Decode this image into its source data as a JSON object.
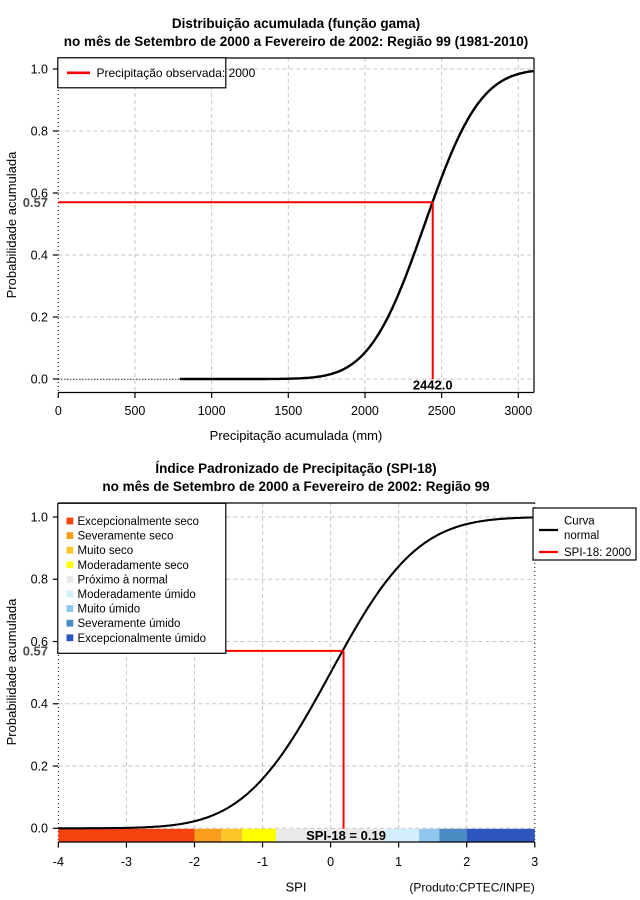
{
  "page": {
    "background": "#ffffff"
  },
  "colors": {
    "curve": "#000000",
    "marker_red": "#ff0000",
    "grid_gray": "#c6c6c6",
    "grid_black_dotted": "#000000",
    "marker_y_label_gray": "#4d4d4d"
  },
  "chart_data": [
    {
      "type": "line",
      "title_line1": "Distribuição acumulada (função gama)",
      "title_line2": "no mês de Setembro de 2000 a Fevereiro de 2002: Região 99 (1981-2010)",
      "xlabel": "Precipitação acumulada (mm)",
      "ylabel": "Probabilidade acumulada",
      "xlim": [
        0,
        3100
      ],
      "ylim": [
        0,
        1
      ],
      "xtick_values": [
        0,
        500,
        1000,
        1500,
        2000,
        2500,
        3000
      ],
      "xtick_labels": [
        "0",
        "500",
        "1000",
        "1500",
        "2000",
        "2500",
        "3000"
      ],
      "ytick_values": [
        0,
        0.2,
        0.4,
        0.6,
        0.8,
        1.0
      ],
      "ytick_labels": [
        "0.0",
        "0.2",
        "0.4",
        "0.6",
        "0.8",
        "1.0"
      ],
      "grid": "dashed gray at ticks, dotted black at x=0",
      "legend": [
        {
          "label": "Precipitação observada: 2000",
          "color": "#ff0000"
        }
      ],
      "curve_model": {
        "kind": "normal_cdf_approx_of_gamma",
        "mean": 2390,
        "sd": 285,
        "draw_from": 794,
        "draw_to": 3100
      },
      "sample_points": [
        [
          800,
          0
        ],
        [
          1000,
          0
        ],
        [
          1200,
          0
        ],
        [
          1400,
          0.001
        ],
        [
          1600,
          0.003
        ],
        [
          1700,
          0.008
        ],
        [
          1800,
          0.02
        ],
        [
          1900,
          0.04
        ],
        [
          2000,
          0.09
        ],
        [
          2100,
          0.15
        ],
        [
          2200,
          0.25
        ],
        [
          2300,
          0.38
        ],
        [
          2400,
          0.51
        ],
        [
          2442,
          0.57
        ],
        [
          2500,
          0.65
        ],
        [
          2600,
          0.77
        ],
        [
          2700,
          0.86
        ],
        [
          2800,
          0.92
        ],
        [
          2900,
          0.96
        ],
        [
          3000,
          0.98
        ],
        [
          3100,
          0.99
        ]
      ],
      "marker": {
        "x": 2442.0,
        "y": 0.57,
        "x_label": "2442.0",
        "y_label": "0.57"
      }
    },
    {
      "type": "line",
      "title_line1": "Índice Padronizado de Precipitação (SPI-18)",
      "title_line2": "no mês de Setembro de 2000 a Fevereiro de 2002: Região 99",
      "xlabel": "SPI",
      "ylabel": "Probabilidade acumulada",
      "xlim": [
        -4,
        3
      ],
      "ylim": [
        0,
        1
      ],
      "xtick_values": [
        -4,
        -3,
        -2,
        -1,
        0,
        1,
        2,
        3
      ],
      "xtick_labels": [
        "-4",
        "-3",
        "-2",
        "-1",
        "0",
        "1",
        "2",
        "3"
      ],
      "ytick_values": [
        0,
        0.2,
        0.4,
        0.6,
        0.8,
        1.0
      ],
      "ytick_labels": [
        "0.0",
        "0.2",
        "0.4",
        "0.6",
        "0.8",
        "1.0"
      ],
      "grid": "dashed gray at ticks, dotted black at x=-4 and x=3",
      "legend_categories": [
        {
          "label": "Excepcionalmente seco",
          "color": "#f5430f"
        },
        {
          "label": "Severamente seco",
          "color": "#f99d1c"
        },
        {
          "label": "Muito seco",
          "color": "#fcc62a"
        },
        {
          "label": "Moderadamente seco",
          "color": "#ffff00"
        },
        {
          "label": "Próximo à normal",
          "color": "#e9e9e9"
        },
        {
          "label": "Moderadamente úmido",
          "color": "#d2eefb"
        },
        {
          "label": "Muito úmido",
          "color": "#8ec6ee"
        },
        {
          "label": "Severamente úmido",
          "color": "#4a8ac2"
        },
        {
          "label": "Excepcionalmente úmido",
          "color": "#2f55be"
        }
      ],
      "legend_normal": {
        "line1": "Curva",
        "line2": "normal",
        "color": "#000000"
      },
      "legend_spi": {
        "label": "SPI-18: 2000",
        "color": "#ff0000"
      },
      "colorbar": {
        "boundaries": [
          -4,
          -2,
          -1.6,
          -1.3,
          -0.8,
          0.8,
          1.3,
          1.6,
          2,
          3
        ]
      },
      "curve_model": {
        "kind": "normal_cdf",
        "mean": 0,
        "sd": 1,
        "draw_from": -4,
        "draw_to": 3
      },
      "sample_points": [
        [
          -4,
          0.0
        ],
        [
          -3,
          0.0013
        ],
        [
          -2.5,
          0.0062
        ],
        [
          -2,
          0.0228
        ],
        [
          -1.5,
          0.0668
        ],
        [
          -1,
          0.1587
        ],
        [
          -0.5,
          0.3085
        ],
        [
          0,
          0.5
        ],
        [
          0.19,
          0.5753
        ],
        [
          0.5,
          0.6915
        ],
        [
          1,
          0.8413
        ],
        [
          1.5,
          0.9332
        ],
        [
          2,
          0.9772
        ],
        [
          2.5,
          0.9938
        ],
        [
          3,
          0.9987
        ]
      ],
      "marker": {
        "x": 0.19,
        "y": 0.57,
        "label": "SPI-18 = 0.19",
        "y_label": "0.57"
      },
      "annotation": "(Produto:CPTEC/INPE)"
    }
  ]
}
